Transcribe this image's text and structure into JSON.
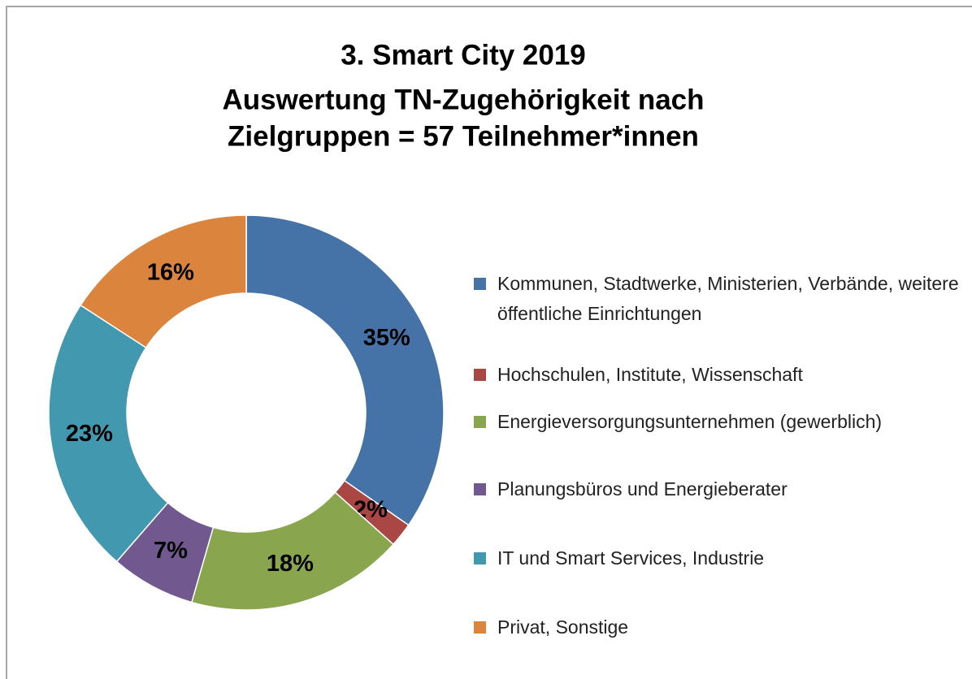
{
  "chart_data": {
    "type": "donut",
    "title": [
      "3. Smart City 2019",
      "Auswertung TN-Zugehörigkeit nach",
      "Zielgruppen = 57 Teilnehmer*innen"
    ],
    "categories": [
      "Kommunen, Stadtwerke, Ministerien, Verbände, weitere öffentliche Einrichtungen",
      "Hochschulen, Institute, Wissenschaft",
      "Energieversorgungsunternehmen (gewerblich)",
      "Planungsbüros und Energieberater",
      "IT und Smart Services, Industrie",
      "Privat, Sonstige"
    ],
    "values": [
      35,
      2,
      18,
      7,
      23,
      16
    ],
    "value_labels": [
      "35%",
      "2%",
      "18%",
      "7%",
      "23%",
      "16%"
    ],
    "colors": [
      "#4572a7",
      "#aa4643",
      "#89a54e",
      "#71588f",
      "#4198af",
      "#db843d"
    ],
    "legend": "right"
  }
}
